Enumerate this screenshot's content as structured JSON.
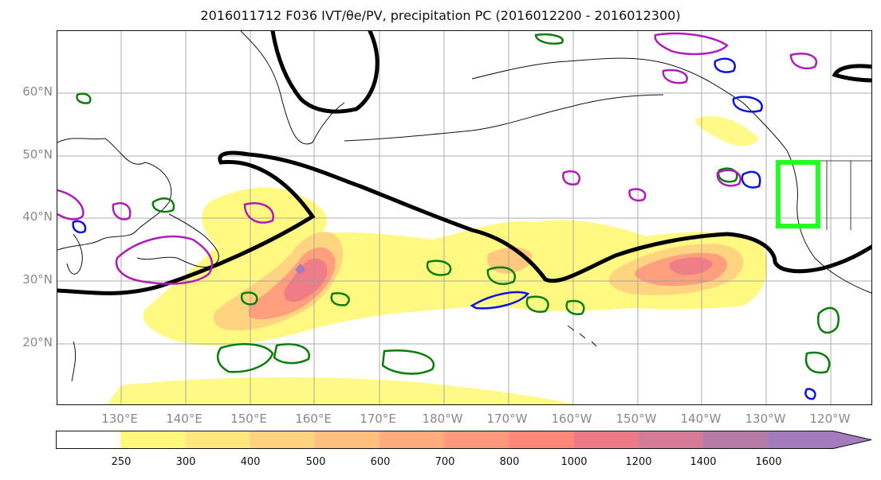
{
  "title": "2016011712 F036 IVT/θe/PV, precipitation PC (2016012200 - 2016012300)",
  "lat_labels": [
    "60°N",
    "50°N",
    "40°N",
    "30°N",
    "20°N"
  ],
  "lon_labels": [
    "130°E",
    "140°E",
    "150°E",
    "160°E",
    "170°E",
    "180°W",
    "170°W",
    "160°W",
    "150°W",
    "140°W",
    "130°W",
    "120°W"
  ],
  "colorbar": {
    "labels": [
      "250",
      "300",
      "400",
      "500",
      "600",
      "700",
      "800",
      "1000",
      "1200",
      "1400",
      "1600"
    ],
    "colors": [
      "#ffffff",
      "#fff87a",
      "#ffe77e",
      "#ffd27f",
      "#ffc07e",
      "#ffac7d",
      "#ff997c",
      "#ff877a",
      "#ee7a88",
      "#d67c98",
      "#b67ba6",
      "#a47bbd"
    ]
  },
  "legend_colors": {
    "contour_black": "#000000",
    "contour_green": "#0a7d0a",
    "contour_magenta": "#b01cb8",
    "contour_blue": "#0a14e0",
    "box_green": "#22ff22"
  }
}
